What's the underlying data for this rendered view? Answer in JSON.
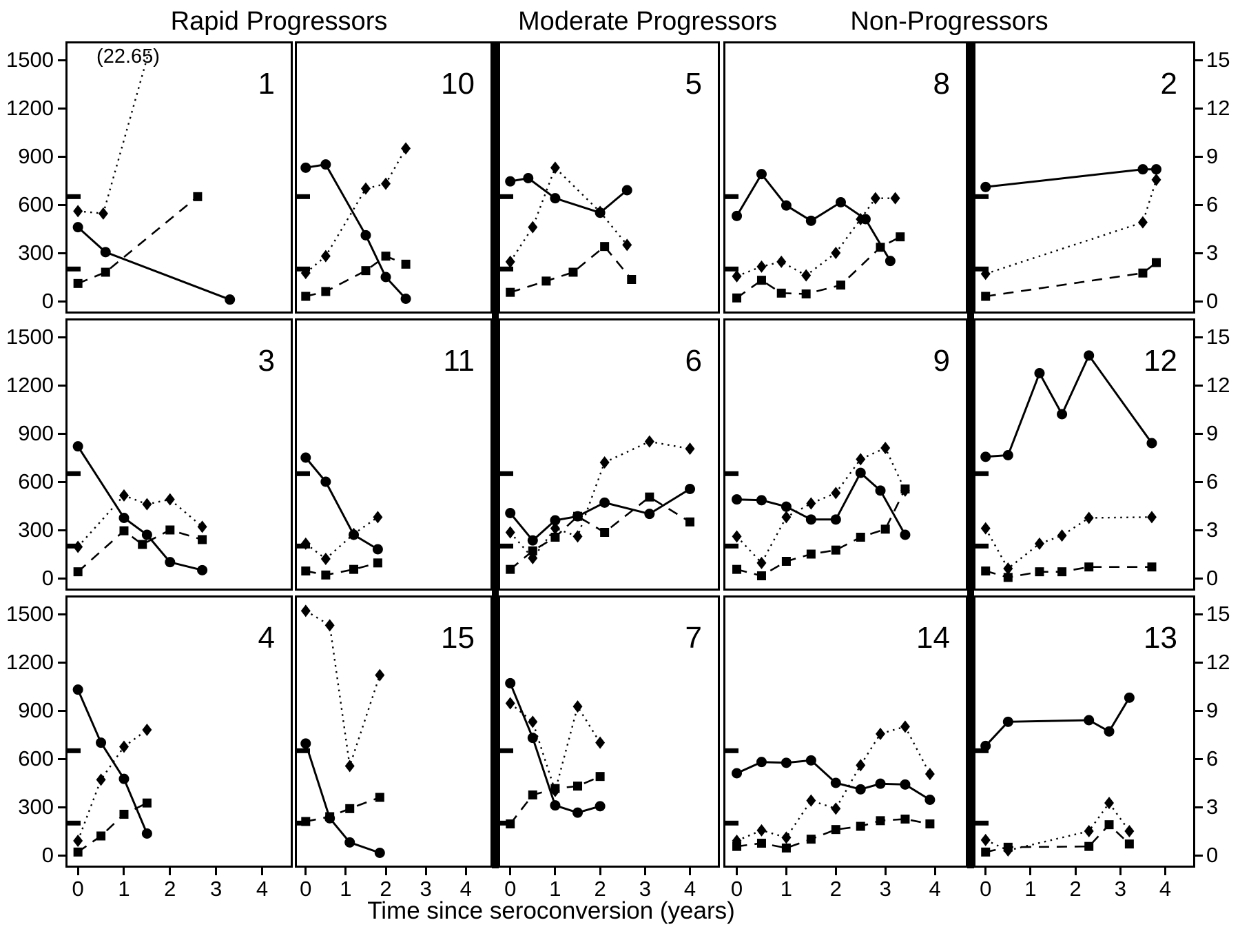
{
  "figure": {
    "group_titles": [
      "Rapid Progressors",
      "Moderate Progressors",
      "Non-Progressors"
    ],
    "xlabel": "Time since seroconversion (years)",
    "left_axis_ticks": [
      0,
      300,
      600,
      900,
      1200,
      1500
    ],
    "right_axis_ticks": [
      0,
      3,
      6,
      9,
      12,
      15
    ],
    "x_axis_ticks": [
      0,
      1,
      2,
      3,
      4
    ],
    "reference_levels": [
      650,
      200
    ],
    "ylim_left": [
      0,
      1500
    ],
    "ylim_right": [
      0,
      15
    ],
    "xlim": [
      0,
      4
    ],
    "line_color": "#000000",
    "background": "#ffffff"
  },
  "chart_data": [
    {
      "type": "line",
      "label": "1",
      "group": "Rapid Progressors",
      "row": 0,
      "col": 0,
      "annotation": "(22.65)",
      "circles_solid": [
        [
          0,
          460
        ],
        [
          0.6,
          305
        ],
        [
          3.3,
          10
        ]
      ],
      "diamonds_dotted": [
        [
          0,
          560
        ],
        [
          0.55,
          545
        ],
        [
          1.55,
          1560
        ]
      ],
      "squares_dashed": [
        [
          0,
          110
        ],
        [
          0.6,
          180
        ],
        [
          2.6,
          650
        ]
      ]
    },
    {
      "type": "line",
      "label": "10",
      "group": "Rapid Progressors",
      "row": 0,
      "col": 1,
      "circles_solid": [
        [
          0,
          830
        ],
        [
          0.5,
          850
        ],
        [
          1.5,
          410
        ],
        [
          2,
          150
        ],
        [
          2.5,
          15
        ]
      ],
      "diamonds_dotted": [
        [
          0,
          175
        ],
        [
          0.5,
          280
        ],
        [
          1.5,
          700
        ],
        [
          2,
          730
        ],
        [
          2.5,
          950
        ]
      ],
      "squares_dashed": [
        [
          0,
          30
        ],
        [
          0.5,
          60
        ],
        [
          1.5,
          190
        ],
        [
          2,
          280
        ],
        [
          2.5,
          230
        ]
      ]
    },
    {
      "type": "line",
      "label": "5",
      "group": "Moderate Progressors",
      "row": 0,
      "col": 2,
      "circles_solid": [
        [
          0,
          745
        ],
        [
          0.4,
          765
        ],
        [
          1,
          640
        ],
        [
          2,
          550
        ],
        [
          2.6,
          690
        ]
      ],
      "diamonds_dotted": [
        [
          0,
          245
        ],
        [
          0.5,
          460
        ],
        [
          1,
          830
        ],
        [
          2,
          555
        ],
        [
          2.6,
          350
        ]
      ],
      "squares_dashed": [
        [
          0,
          55
        ],
        [
          0.8,
          125
        ],
        [
          1.4,
          180
        ],
        [
          2.1,
          340
        ],
        [
          2.7,
          135
        ]
      ]
    },
    {
      "type": "line",
      "label": "8",
      "group": "Moderate Progressors",
      "row": 0,
      "col": 3,
      "circles_solid": [
        [
          0,
          530
        ],
        [
          0.5,
          790
        ],
        [
          1,
          595
        ],
        [
          1.5,
          500
        ],
        [
          2.1,
          615
        ],
        [
          2.6,
          510
        ],
        [
          3.1,
          250
        ]
      ],
      "diamonds_dotted": [
        [
          0,
          155
        ],
        [
          0.5,
          215
        ],
        [
          0.9,
          245
        ],
        [
          1.4,
          160
        ],
        [
          2,
          300
        ],
        [
          2.5,
          510
        ],
        [
          2.8,
          640
        ],
        [
          3.2,
          640
        ]
      ],
      "squares_dashed": [
        [
          0,
          20
        ],
        [
          0.5,
          130
        ],
        [
          0.9,
          50
        ],
        [
          1.4,
          45
        ],
        [
          2.1,
          100
        ],
        [
          2.9,
          335
        ],
        [
          3.3,
          400
        ]
      ]
    },
    {
      "type": "line",
      "label": "2",
      "group": "Non-Progressors",
      "row": 0,
      "col": 4,
      "circles_solid": [
        [
          0,
          710
        ],
        [
          3.5,
          820
        ],
        [
          3.8,
          820
        ]
      ],
      "diamonds_dotted": [
        [
          0,
          170
        ],
        [
          3.5,
          490
        ],
        [
          3.8,
          755
        ]
      ],
      "squares_dashed": [
        [
          0,
          30
        ],
        [
          3.5,
          175
        ],
        [
          3.8,
          240
        ]
      ]
    },
    {
      "type": "line",
      "label": "3",
      "group": "Rapid Progressors",
      "row": 1,
      "col": 0,
      "circles_solid": [
        [
          0,
          820
        ],
        [
          1,
          375
        ],
        [
          1.5,
          270
        ],
        [
          2,
          100
        ],
        [
          2.7,
          50
        ]
      ],
      "diamonds_dotted": [
        [
          0,
          195
        ],
        [
          1,
          515
        ],
        [
          1.5,
          460
        ],
        [
          2,
          490
        ],
        [
          2.7,
          320
        ]
      ],
      "squares_dashed": [
        [
          0,
          40
        ],
        [
          1,
          295
        ],
        [
          1.4,
          210
        ],
        [
          2,
          300
        ],
        [
          2.7,
          240
        ]
      ]
    },
    {
      "type": "line",
      "label": "11",
      "group": "Rapid Progressors",
      "row": 1,
      "col": 1,
      "circles_solid": [
        [
          0,
          750
        ],
        [
          0.5,
          600
        ],
        [
          1.2,
          270
        ],
        [
          1.8,
          180
        ]
      ],
      "diamonds_dotted": [
        [
          0,
          215
        ],
        [
          0.5,
          120
        ],
        [
          1.2,
          275
        ],
        [
          1.8,
          380
        ]
      ],
      "squares_dashed": [
        [
          0,
          45
        ],
        [
          0.5,
          20
        ],
        [
          1.2,
          55
        ],
        [
          1.8,
          95
        ]
      ]
    },
    {
      "type": "line",
      "label": "6",
      "group": "Moderate Progressors",
      "row": 1,
      "col": 2,
      "circles_solid": [
        [
          0,
          405
        ],
        [
          0.5,
          235
        ],
        [
          1,
          360
        ],
        [
          1.5,
          385
        ],
        [
          2.1,
          470
        ],
        [
          3.1,
          400
        ],
        [
          4,
          555
        ]
      ],
      "diamonds_dotted": [
        [
          0,
          285
        ],
        [
          0.5,
          125
        ],
        [
          1,
          310
        ],
        [
          1.5,
          260
        ],
        [
          2.1,
          720
        ],
        [
          3.1,
          850
        ],
        [
          4,
          805
        ]
      ],
      "squares_dashed": [
        [
          0,
          55
        ],
        [
          0.5,
          170
        ],
        [
          1,
          255
        ],
        [
          1.5,
          385
        ],
        [
          2.1,
          285
        ],
        [
          3.1,
          505
        ],
        [
          4,
          350
        ]
      ]
    },
    {
      "type": "line",
      "label": "9",
      "group": "Moderate Progressors",
      "row": 1,
      "col": 3,
      "circles_solid": [
        [
          0,
          490
        ],
        [
          0.5,
          485
        ],
        [
          1,
          445
        ],
        [
          1.5,
          365
        ],
        [
          2,
          365
        ],
        [
          2.5,
          655
        ],
        [
          2.9,
          545
        ],
        [
          3.4,
          270
        ]
      ],
      "diamonds_dotted": [
        [
          0,
          260
        ],
        [
          0.5,
          95
        ],
        [
          1,
          380
        ],
        [
          1.5,
          465
        ],
        [
          2,
          530
        ],
        [
          2.5,
          740
        ],
        [
          3,
          810
        ],
        [
          3.4,
          545
        ]
      ],
      "squares_dashed": [
        [
          0,
          55
        ],
        [
          0.5,
          15
        ],
        [
          1,
          105
        ],
        [
          1.5,
          150
        ],
        [
          2,
          175
        ],
        [
          2.5,
          255
        ],
        [
          3,
          305
        ],
        [
          3.4,
          555
        ]
      ]
    },
    {
      "type": "line",
      "label": "12",
      "group": "Non-Progressors",
      "row": 1,
      "col": 4,
      "circles_solid": [
        [
          0,
          755
        ],
        [
          0.5,
          765
        ],
        [
          1.2,
          1275
        ],
        [
          1.7,
          1020
        ],
        [
          2.3,
          1385
        ],
        [
          3.7,
          840
        ]
      ],
      "diamonds_dotted": [
        [
          0,
          310
        ],
        [
          0.5,
          60
        ],
        [
          1.2,
          215
        ],
        [
          1.7,
          265
        ],
        [
          2.3,
          375
        ],
        [
          3.7,
          380
        ]
      ],
      "squares_dashed": [
        [
          0,
          45
        ],
        [
          0.5,
          5
        ],
        [
          1.2,
          40
        ],
        [
          1.7,
          40
        ],
        [
          2.3,
          70
        ],
        [
          3.7,
          70
        ]
      ]
    },
    {
      "type": "line",
      "label": "4",
      "group": "Rapid Progressors",
      "row": 2,
      "col": 0,
      "circles_solid": [
        [
          0,
          1030
        ],
        [
          0.5,
          700
        ],
        [
          1,
          475
        ],
        [
          1.5,
          135
        ]
      ],
      "diamonds_dotted": [
        [
          0,
          90
        ],
        [
          0.5,
          470
        ],
        [
          1,
          675
        ],
        [
          1.5,
          780
        ]
      ],
      "squares_dashed": [
        [
          0,
          20
        ],
        [
          0.5,
          120
        ],
        [
          1,
          255
        ],
        [
          1.5,
          325
        ]
      ]
    },
    {
      "type": "line",
      "label": "15",
      "group": "Rapid Progressors",
      "row": 2,
      "col": 1,
      "circles_solid": [
        [
          0,
          695
        ],
        [
          0.6,
          230
        ],
        [
          1.1,
          80
        ],
        [
          1.85,
          15
        ]
      ],
      "diamonds_dotted": [
        [
          0,
          1520
        ],
        [
          0.6,
          1430
        ],
        [
          1.1,
          555
        ],
        [
          1.85,
          1120
        ]
      ],
      "squares_dashed": [
        [
          0,
          210
        ],
        [
          0.6,
          240
        ],
        [
          1.1,
          290
        ],
        [
          1.85,
          360
        ]
      ]
    },
    {
      "type": "line",
      "label": "7",
      "group": "Moderate Progressors",
      "row": 2,
      "col": 2,
      "circles_solid": [
        [
          0,
          1070
        ],
        [
          0.5,
          730
        ],
        [
          1,
          310
        ],
        [
          1.5,
          265
        ],
        [
          2,
          305
        ]
      ],
      "diamonds_dotted": [
        [
          0,
          945
        ],
        [
          0.5,
          830
        ],
        [
          1,
          400
        ],
        [
          1.5,
          925
        ],
        [
          2,
          700
        ]
      ],
      "squares_dashed": [
        [
          0,
          195
        ],
        [
          0.5,
          375
        ],
        [
          1,
          415
        ],
        [
          1.5,
          430
        ],
        [
          2,
          490
        ]
      ]
    },
    {
      "type": "line",
      "label": "14",
      "group": "Moderate Progressors",
      "row": 2,
      "col": 3,
      "circles_solid": [
        [
          0,
          510
        ],
        [
          0.5,
          580
        ],
        [
          1,
          575
        ],
        [
          1.5,
          590
        ],
        [
          2,
          450
        ],
        [
          2.5,
          410
        ],
        [
          2.9,
          445
        ],
        [
          3.4,
          440
        ],
        [
          3.9,
          345
        ]
      ],
      "diamonds_dotted": [
        [
          0,
          90
        ],
        [
          0.5,
          155
        ],
        [
          1,
          110
        ],
        [
          1.5,
          340
        ],
        [
          2,
          290
        ],
        [
          2.5,
          560
        ],
        [
          2.9,
          755
        ],
        [
          3.4,
          800
        ],
        [
          3.9,
          505
        ]
      ],
      "squares_dashed": [
        [
          0,
          55
        ],
        [
          0.5,
          75
        ],
        [
          1,
          45
        ],
        [
          1.5,
          100
        ],
        [
          2,
          160
        ],
        [
          2.5,
          180
        ],
        [
          2.9,
          215
        ],
        [
          3.4,
          225
        ],
        [
          3.9,
          195
        ]
      ]
    },
    {
      "type": "line",
      "label": "13",
      "group": "Non-Progressors",
      "row": 2,
      "col": 4,
      "circles_solid": [
        [
          0,
          680
        ],
        [
          0.5,
          830
        ],
        [
          2.3,
          840
        ],
        [
          2.75,
          770
        ],
        [
          3.2,
          980
        ]
      ],
      "diamonds_dotted": [
        [
          0,
          95
        ],
        [
          0.5,
          30
        ],
        [
          2.3,
          150
        ],
        [
          2.75,
          325
        ],
        [
          3.2,
          150
        ]
      ],
      "squares_dashed": [
        [
          0,
          20
        ],
        [
          0.5,
          50
        ],
        [
          2.3,
          55
        ],
        [
          2.75,
          190
        ],
        [
          3.2,
          70
        ]
      ]
    }
  ]
}
